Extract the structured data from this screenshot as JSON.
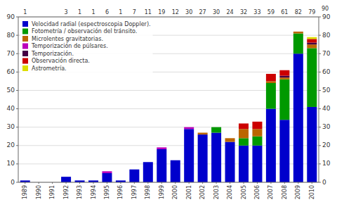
{
  "chart_data": {
    "type": "bar",
    "stacked": true,
    "categories": [
      "1989",
      "1990",
      "1991",
      "1992",
      "1993",
      "1994",
      "1995",
      "1996",
      "1997",
      "1998",
      "1999",
      "2000",
      "2001",
      "2002",
      "2003",
      "2004",
      "2005",
      "2006",
      "2007",
      "2008",
      "2009",
      "2010"
    ],
    "series": [
      {
        "name": "Velocidad radial (espectroscopia Doppler).",
        "color": "#0000CC",
        "values": [
          1,
          0,
          0,
          3,
          1,
          1,
          5,
          1,
          7,
          11,
          18,
          12,
          29,
          26,
          27,
          22,
          20,
          20,
          40,
          34,
          70,
          41
        ]
      },
      {
        "name": "Fotometría / observación del tránsito.",
        "color": "#009900",
        "values": [
          0,
          0,
          0,
          0,
          0,
          0,
          0,
          0,
          0,
          0,
          0,
          0,
          0,
          0,
          3,
          0,
          4,
          5,
          14,
          22,
          11,
          32
        ]
      },
      {
        "name": "Microlentes gravitatorias.",
        "color": "#BB6600",
        "values": [
          0,
          0,
          0,
          0,
          0,
          0,
          0,
          0,
          0,
          0,
          0,
          0,
          0,
          1,
          0,
          2,
          5,
          4,
          1,
          1,
          1,
          2
        ]
      },
      {
        "name": "Temporización de púlsares.",
        "color": "#BB00BB",
        "values": [
          0,
          0,
          0,
          0,
          0,
          0,
          1,
          0,
          0,
          0,
          1,
          0,
          1,
          0,
          0,
          0,
          0,
          0,
          0,
          0,
          0,
          0
        ]
      },
      {
        "name": "Temporización.",
        "color": "#440044",
        "values": [
          0,
          0,
          0,
          0,
          0,
          0,
          0,
          0,
          0,
          0,
          0,
          0,
          0,
          0,
          0,
          0,
          0,
          0,
          0,
          1,
          0,
          1
        ]
      },
      {
        "name": "Observación directa.",
        "color": "#CC0000",
        "values": [
          0,
          0,
          0,
          0,
          0,
          0,
          0,
          0,
          0,
          0,
          0,
          0,
          0,
          0,
          0,
          0,
          3,
          4,
          4,
          3,
          0,
          2
        ]
      },
      {
        "name": "Astrometría.",
        "color": "#DDDD00",
        "values": [
          0,
          0,
          0,
          0,
          0,
          0,
          0,
          0,
          0,
          0,
          0,
          0,
          0,
          0,
          0,
          0,
          0,
          0,
          0,
          0,
          0,
          1
        ]
      }
    ],
    "totals": [
      1,
      null,
      null,
      3,
      1,
      1,
      6,
      1,
      7,
      11,
      19,
      12,
      30,
      27,
      30,
      24,
      32,
      33,
      59,
      61,
      82,
      79
    ],
    "annotations": [
      {
        "text": "90"
      }
    ],
    "ylim": [
      0,
      90
    ],
    "yticks": [
      0,
      10,
      20,
      30,
      40,
      50,
      60,
      70,
      80,
      90
    ],
    "y2lim": [
      0,
      90
    ],
    "y2ticks": [
      0,
      10,
      20,
      30,
      40,
      50,
      60,
      70,
      80,
      90
    ],
    "grid": true,
    "legend": "upper left"
  }
}
